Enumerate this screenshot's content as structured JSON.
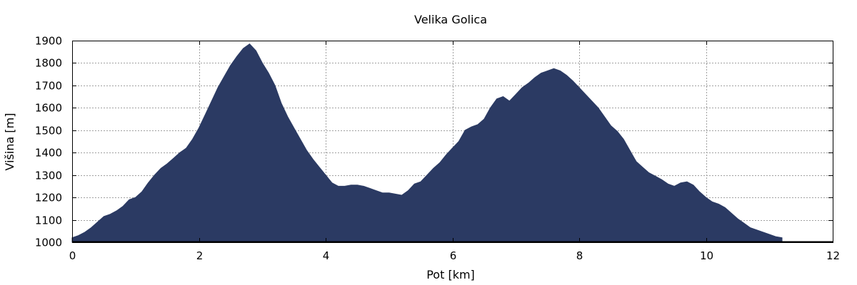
{
  "chart_data": {
    "type": "area",
    "title": "Velika Golica",
    "xlabel": "Pot [km]",
    "ylabel": "Višina [m]",
    "xlim": [
      0,
      12
    ],
    "ylim": [
      1000,
      1900
    ],
    "xticks": [
      0,
      2,
      4,
      6,
      8,
      10,
      12
    ],
    "yticks": [
      1000,
      1100,
      1200,
      1300,
      1400,
      1500,
      1600,
      1700,
      1800,
      1900
    ],
    "grid": true,
    "fill_color": "#2b3a63",
    "series": [
      {
        "x": [
          0,
          0.1,
          0.2,
          0.3,
          0.4,
          0.5,
          0.6,
          0.7,
          0.8,
          0.9,
          1.0,
          1.1,
          1.2,
          1.3,
          1.4,
          1.5,
          1.6,
          1.7,
          1.8,
          1.9,
          2.0,
          2.1,
          2.2,
          2.3,
          2.4,
          2.5,
          2.6,
          2.7,
          2.8,
          2.9,
          3.0,
          3.1,
          3.2,
          3.3,
          3.4,
          3.5,
          3.6,
          3.7,
          3.8,
          3.9,
          4.0,
          4.1,
          4.2,
          4.3,
          4.4,
          4.5,
          4.6,
          4.7,
          4.8,
          4.9,
          5.0,
          5.1,
          5.2,
          5.3,
          5.4,
          5.5,
          5.6,
          5.7,
          5.8,
          5.9,
          6.0,
          6.1,
          6.2,
          6.3,
          6.4,
          6.5,
          6.6,
          6.7,
          6.8,
          6.9,
          7.0,
          7.1,
          7.2,
          7.3,
          7.4,
          7.5,
          7.6,
          7.7,
          7.8,
          7.9,
          8.0,
          8.1,
          8.2,
          8.3,
          8.4,
          8.5,
          8.6,
          8.7,
          8.8,
          8.9,
          9.0,
          9.1,
          9.2,
          9.3,
          9.4,
          9.5,
          9.6,
          9.7,
          9.8,
          9.9,
          10.0,
          10.1,
          10.2,
          10.3,
          10.4,
          10.5,
          10.6,
          10.7,
          10.8,
          10.9,
          11.0,
          11.1,
          11.2
        ],
        "y": [
          1020,
          1030,
          1045,
          1065,
          1090,
          1115,
          1125,
          1140,
          1160,
          1190,
          1200,
          1225,
          1265,
          1300,
          1330,
          1350,
          1375,
          1400,
          1420,
          1460,
          1510,
          1570,
          1630,
          1690,
          1740,
          1790,
          1830,
          1865,
          1885,
          1855,
          1800,
          1755,
          1700,
          1620,
          1560,
          1510,
          1460,
          1410,
          1370,
          1335,
          1300,
          1265,
          1250,
          1250,
          1255,
          1255,
          1250,
          1240,
          1230,
          1220,
          1220,
          1215,
          1210,
          1230,
          1260,
          1270,
          1300,
          1330,
          1355,
          1390,
          1420,
          1450,
          1500,
          1515,
          1525,
          1550,
          1600,
          1640,
          1650,
          1630,
          1660,
          1690,
          1710,
          1735,
          1755,
          1765,
          1775,
          1765,
          1745,
          1720,
          1690,
          1660,
          1630,
          1600,
          1560,
          1520,
          1495,
          1460,
          1410,
          1360,
          1335,
          1310,
          1295,
          1280,
          1260,
          1250,
          1265,
          1270,
          1255,
          1225,
          1200,
          1180,
          1170,
          1155,
          1130,
          1105,
          1085,
          1065,
          1055,
          1045,
          1035,
          1025,
          1020
        ]
      }
    ]
  }
}
